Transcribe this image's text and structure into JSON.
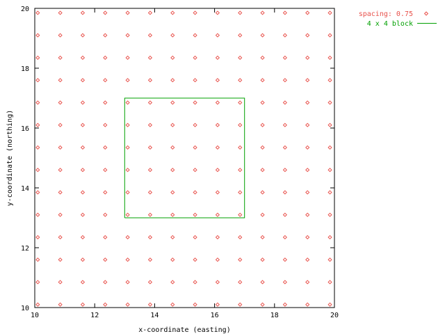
{
  "chart_data": {
    "type": "scatter",
    "title": "",
    "xlabel": "x-coordinate (easting)",
    "ylabel": "y-coordinate (northing)",
    "xlim": [
      10,
      20
    ],
    "ylim": [
      10,
      20
    ],
    "xticks": [
      "10",
      "12",
      "14",
      "16",
      "18",
      "20"
    ],
    "yticks": [
      "10",
      "12",
      "14",
      "16",
      "18",
      "20"
    ],
    "grid": false,
    "legend_position": "top-right-outside",
    "series": [
      {
        "name": "spacing: 0.75",
        "type": "points",
        "color": "#e8504a",
        "marker": "diamond",
        "x": [
          10.1,
          10.85,
          11.6,
          12.35,
          13.1,
          13.85,
          14.6,
          15.35,
          16.1,
          16.85,
          17.6,
          18.35,
          19.1,
          19.85
        ],
        "y": [
          10.1,
          10.85,
          11.6,
          12.35,
          13.1,
          13.85,
          14.6,
          15.35,
          16.1,
          16.85,
          17.6,
          18.35,
          19.1,
          19.85
        ]
      },
      {
        "name": "4 x 4 block",
        "type": "line",
        "color": "#00a000",
        "x": [
          13,
          17,
          17,
          13,
          13
        ],
        "y": [
          13,
          13,
          17,
          17,
          13
        ]
      }
    ]
  }
}
